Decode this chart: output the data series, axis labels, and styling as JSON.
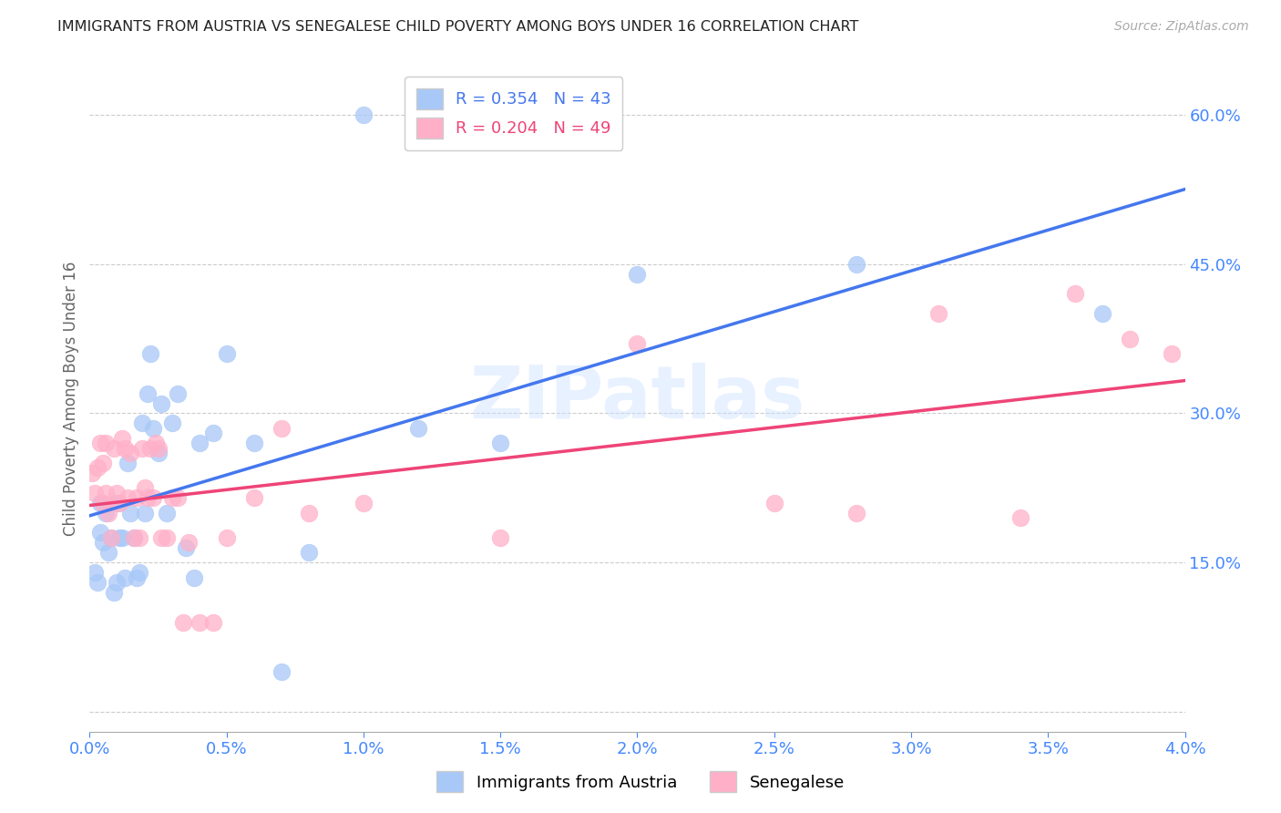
{
  "title": "IMMIGRANTS FROM AUSTRIA VS SENEGALESE CHILD POVERTY AMONG BOYS UNDER 16 CORRELATION CHART",
  "source": "Source: ZipAtlas.com",
  "ylabel": "Child Poverty Among Boys Under 16",
  "right_yticks": [
    0.0,
    0.15,
    0.3,
    0.45,
    0.6
  ],
  "right_ytick_labels": [
    "",
    "15.0%",
    "30.0%",
    "45.0%",
    "60.0%"
  ],
  "legend_blue_r": "R = 0.354",
  "legend_blue_n": "N = 43",
  "legend_pink_r": "R = 0.204",
  "legend_pink_n": "N = 49",
  "blue_color": "#a8c8f8",
  "pink_color": "#ffb0c8",
  "blue_line_color": "#4477ee",
  "pink_line_color": "#ee4477",
  "axis_label_color": "#4488ff",
  "watermark": "ZIPatlas",
  "blue_points_x": [
    0.0002,
    0.0003,
    0.0004,
    0.0004,
    0.0005,
    0.0006,
    0.0007,
    0.0008,
    0.0009,
    0.001,
    0.001,
    0.0011,
    0.0012,
    0.0013,
    0.0014,
    0.0015,
    0.0016,
    0.0017,
    0.0018,
    0.0019,
    0.002,
    0.0021,
    0.0022,
    0.0023,
    0.0025,
    0.0026,
    0.0028,
    0.003,
    0.0032,
    0.0035,
    0.0038,
    0.004,
    0.0045,
    0.005,
    0.006,
    0.007,
    0.008,
    0.01,
    0.012,
    0.015,
    0.02,
    0.028,
    0.037
  ],
  "blue_points_y": [
    0.14,
    0.13,
    0.18,
    0.21,
    0.17,
    0.2,
    0.16,
    0.175,
    0.12,
    0.13,
    0.21,
    0.175,
    0.175,
    0.135,
    0.25,
    0.2,
    0.175,
    0.135,
    0.14,
    0.29,
    0.2,
    0.32,
    0.36,
    0.285,
    0.26,
    0.31,
    0.2,
    0.29,
    0.32,
    0.165,
    0.135,
    0.27,
    0.28,
    0.36,
    0.27,
    0.04,
    0.16,
    0.6,
    0.285,
    0.27,
    0.44,
    0.45,
    0.4
  ],
  "pink_points_x": [
    0.0001,
    0.0002,
    0.0003,
    0.0004,
    0.0005,
    0.0005,
    0.0006,
    0.0006,
    0.0007,
    0.0008,
    0.0009,
    0.001,
    0.0011,
    0.0012,
    0.0013,
    0.0014,
    0.0015,
    0.0016,
    0.0017,
    0.0018,
    0.0019,
    0.002,
    0.0021,
    0.0022,
    0.0023,
    0.0024,
    0.0025,
    0.0026,
    0.0028,
    0.003,
    0.0032,
    0.0034,
    0.0036,
    0.004,
    0.0045,
    0.005,
    0.006,
    0.007,
    0.008,
    0.01,
    0.015,
    0.02,
    0.025,
    0.028,
    0.031,
    0.034,
    0.036,
    0.038,
    0.0395
  ],
  "pink_points_y": [
    0.24,
    0.22,
    0.245,
    0.27,
    0.25,
    0.21,
    0.22,
    0.27,
    0.2,
    0.175,
    0.265,
    0.22,
    0.21,
    0.275,
    0.265,
    0.215,
    0.26,
    0.175,
    0.215,
    0.175,
    0.265,
    0.225,
    0.215,
    0.265,
    0.215,
    0.27,
    0.265,
    0.175,
    0.175,
    0.215,
    0.215,
    0.09,
    0.17,
    0.09,
    0.09,
    0.175,
    0.215,
    0.285,
    0.2,
    0.21,
    0.175,
    0.37,
    0.21,
    0.2,
    0.4,
    0.195,
    0.42,
    0.375,
    0.36
  ],
  "xlim": [
    0.0,
    0.04
  ],
  "ylim": [
    -0.02,
    0.65
  ],
  "xtick_count": 9
}
